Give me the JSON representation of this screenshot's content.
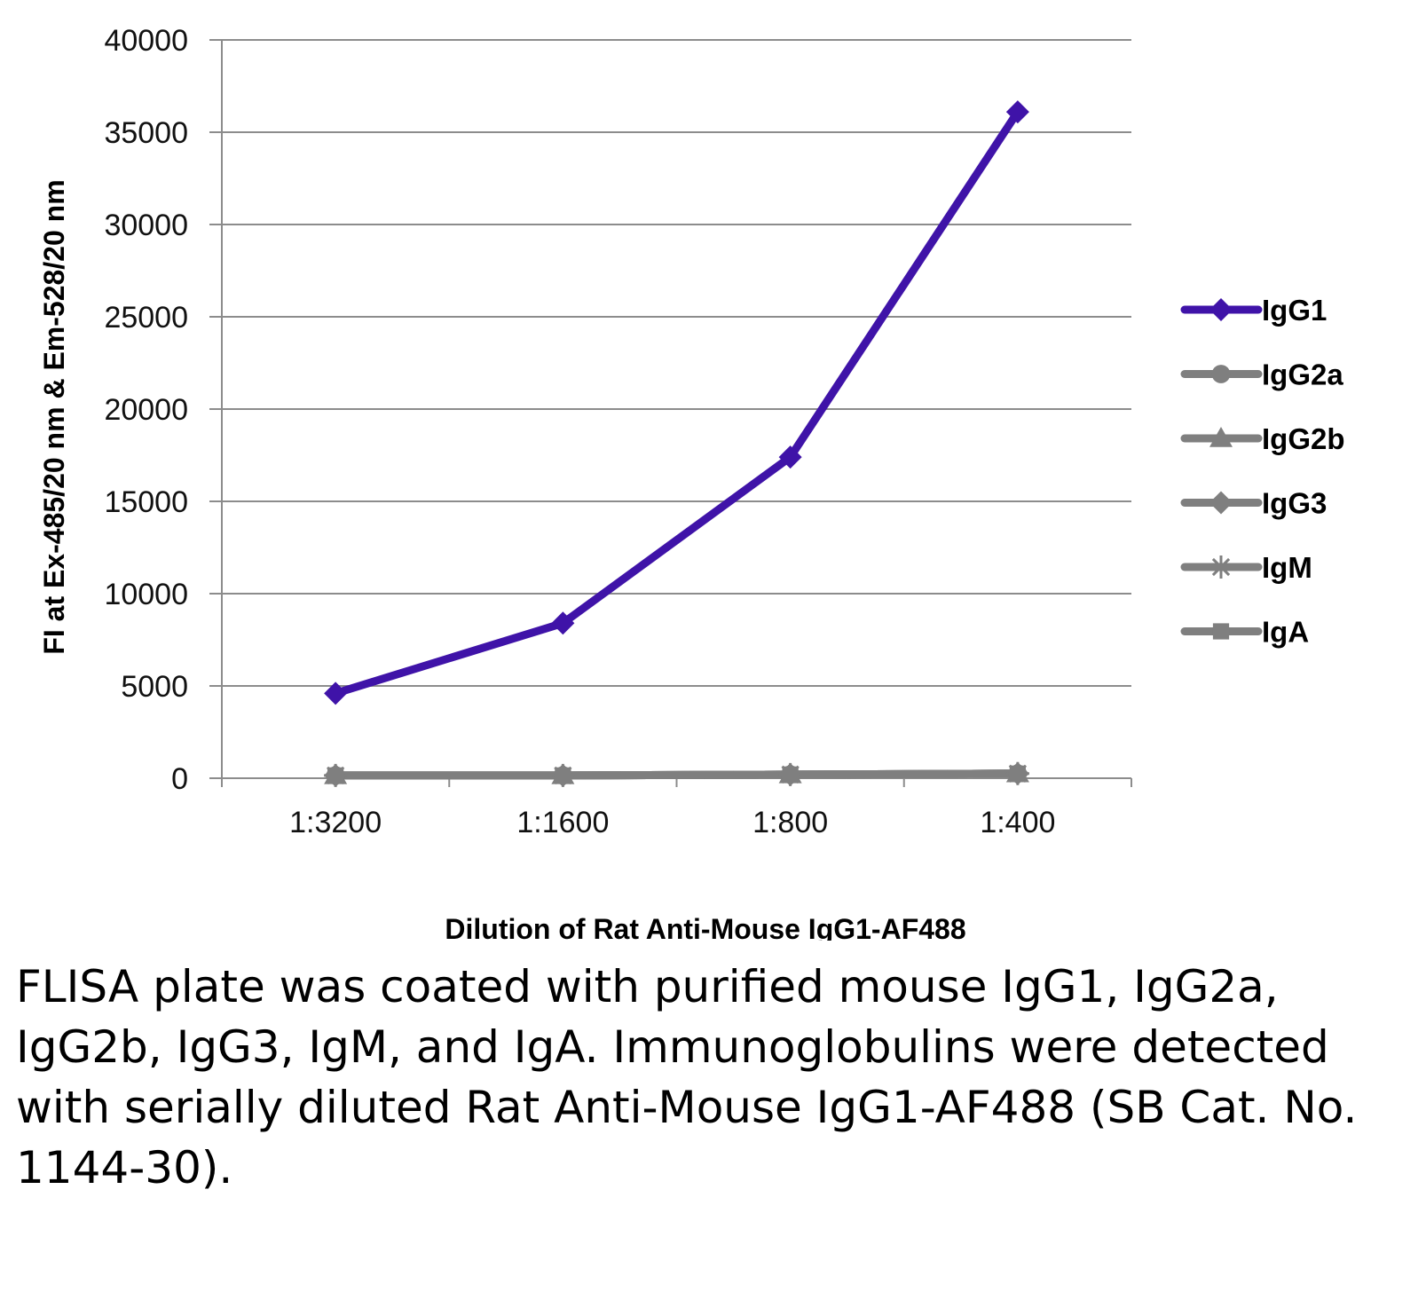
{
  "chart_data": {
    "type": "line",
    "categories": [
      "1:3200",
      "1:1600",
      "1:800",
      "1:400"
    ],
    "series": [
      {
        "name": "IgG1",
        "values": [
          4600,
          8400,
          17400,
          36100
        ],
        "color": "#3f13a8",
        "marker": "diamond"
      },
      {
        "name": "IgG2a",
        "values": [
          150,
          150,
          200,
          250
        ],
        "color": "#7f7f7f",
        "marker": "circle"
      },
      {
        "name": "IgG2b",
        "values": [
          150,
          150,
          200,
          250
        ],
        "color": "#7f7f7f",
        "marker": "triangle"
      },
      {
        "name": "IgG3",
        "values": [
          150,
          150,
          200,
          250
        ],
        "color": "#7f7f7f",
        "marker": "diamond"
      },
      {
        "name": "IgM",
        "values": [
          150,
          150,
          200,
          250
        ],
        "color": "#7f7f7f",
        "marker": "star"
      },
      {
        "name": "IgA",
        "values": [
          150,
          150,
          200,
          250
        ],
        "color": "#7f7f7f",
        "marker": "square"
      }
    ],
    "ylabel": "FI at Ex-485/20 nm & Em-528/20 nm",
    "xlabel": "Dilution of Rat Anti-Mouse IgG1-AF488",
    "ylim": [
      0,
      40000
    ],
    "yticks": [
      "0",
      "5000",
      "10000",
      "15000",
      "20000",
      "25000",
      "30000",
      "35000",
      "40000"
    ],
    "grid": true,
    "legend_position": "right"
  },
  "caption": "FLISA plate was coated with purified mouse IgG1, IgG2a, IgG2b, IgG3, IgM, and IgA. Immunoglobulins were detected with serially diluted Rat Anti-Mouse IgG1-AF488 (SB Cat. No. 1144-30)."
}
